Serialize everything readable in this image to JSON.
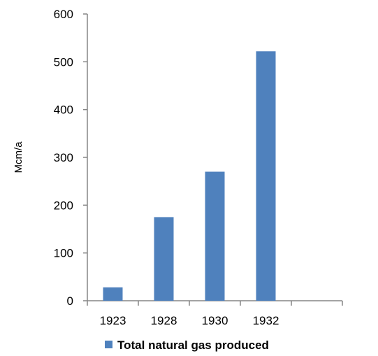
{
  "chart_data": {
    "type": "bar",
    "categories": [
      "1923",
      "1928",
      "1930",
      "1932"
    ],
    "series": [
      {
        "name": "Total natural gas produced",
        "values": [
          28,
          175,
          270,
          522
        ],
        "color": "#4F81BD"
      }
    ],
    "xlabel": "",
    "ylabel": "Mcm/a",
    "ylim": [
      0,
      600
    ],
    "yticks": [
      0,
      100,
      200,
      300,
      400,
      500,
      600
    ],
    "grid": false,
    "legend": {
      "position": "bottom",
      "label": "Total natural gas produced"
    },
    "axis_color": "#868686"
  }
}
